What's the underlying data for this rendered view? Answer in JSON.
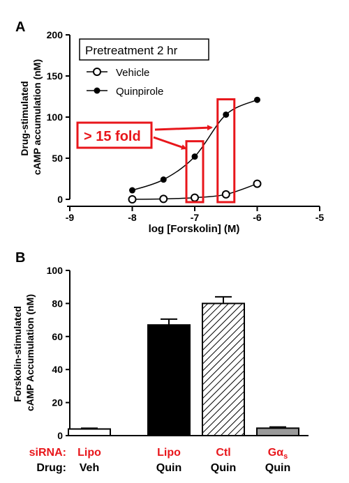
{
  "panels": {
    "a": {
      "label": "A"
    },
    "b": {
      "label": "B"
    }
  },
  "colors": {
    "red": "#e8161b",
    "black": "#000000",
    "grey": "#9a9a9a"
  },
  "chart_data": [
    {
      "type": "scatter",
      "panel": "A",
      "xlabel": "log [Forskolin] (M)",
      "ylabel_lines": [
        "Drug-stimulated",
        "cAMP accumulation (nM)"
      ],
      "xlim": [
        -9,
        -5
      ],
      "ylim": [
        0,
        200
      ],
      "x_ticks": [
        -9,
        -8,
        -7,
        -6,
        -5
      ],
      "y_ticks": [
        0,
        50,
        100,
        150,
        200
      ],
      "legend_title": "Pretreatment 2 hr",
      "series": [
        {
          "name": "Vehicle",
          "marker": "open-circle",
          "x": [
            -8,
            -7.5,
            -7,
            -6.5,
            -6
          ],
          "y": [
            0,
            0.5,
            2,
            6,
            19
          ]
        },
        {
          "name": "Quinpirole",
          "marker": "filled-circle",
          "x": [
            -8,
            -7.5,
            -7,
            -6.5,
            -6
          ],
          "y": [
            11,
            24,
            52,
            103,
            121
          ]
        }
      ],
      "annotation": {
        "text": "> 15 fold",
        "boxes_at_x": [
          -7,
          -6.5
        ]
      },
      "grid": false
    },
    {
      "type": "bar",
      "panel": "B",
      "ylabel_lines": [
        "Forskolin-stimulated",
        "cAMP Accumulation (nM)"
      ],
      "ylim": [
        0,
        100
      ],
      "y_ticks": [
        0,
        20,
        40,
        60,
        80,
        100
      ],
      "row_labels": {
        "sirna": "siRNA:",
        "drug": "Drug:"
      },
      "categories": [
        {
          "sirna": "Lipo",
          "drug": "Veh",
          "value": 4,
          "error": 0.5,
          "fill": "white"
        },
        {
          "sirna": "Lipo",
          "drug": "Quin",
          "value": 67,
          "error": 3.5,
          "fill": "black"
        },
        {
          "sirna": "Ctl",
          "drug": "Quin",
          "value": 80,
          "error": 4,
          "fill": "hatched"
        },
        {
          "sirna": "Gα",
          "sirna_sub": "s",
          "drug": "Quin",
          "value": 4.5,
          "error": 0.7,
          "fill": "grey"
        }
      ],
      "grid": false
    }
  ]
}
